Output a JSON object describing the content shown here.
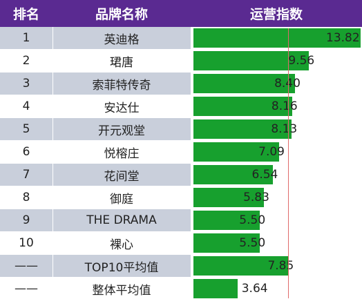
{
  "chart_data": {
    "type": "table",
    "columns": [
      "排名",
      "品牌名称",
      "运营指数"
    ],
    "rows": [
      {
        "rank": "1",
        "name": "英迪格",
        "value": 13.82,
        "label": "13.82"
      },
      {
        "rank": "2",
        "name": "珺唐",
        "value": 9.56,
        "label": "9.56"
      },
      {
        "rank": "3",
        "name": "索菲特传奇",
        "value": 8.4,
        "label": "8.40"
      },
      {
        "rank": "4",
        "name": "安达仕",
        "value": 8.16,
        "label": "8.16"
      },
      {
        "rank": "5",
        "name": "开元观堂",
        "value": 8.13,
        "label": "8.13"
      },
      {
        "rank": "6",
        "name": "悦榕庄",
        "value": 7.09,
        "label": "7.09"
      },
      {
        "rank": "7",
        "name": "花间堂",
        "value": 6.54,
        "label": "6.54"
      },
      {
        "rank": "8",
        "name": "御庭",
        "value": 5.83,
        "label": "5.83"
      },
      {
        "rank": "9",
        "name": "THE DRAMA",
        "value": 5.5,
        "label": "5.50"
      },
      {
        "rank": "10",
        "name": "裸心",
        "value": 5.5,
        "label": "5.50"
      },
      {
        "rank": "——",
        "name": "TOP10平均值",
        "value": 7.85,
        "label": "7.85"
      },
      {
        "rank": "——",
        "name": "整体平均值",
        "value": 3.64,
        "label": "3.64"
      }
    ],
    "reference_line_value": 7.85,
    "bar_scale_max": 13.82,
    "colors": {
      "header": "#5a2a91",
      "bar": "#17a02e",
      "stripe": "#c9cfdb",
      "reference_line": "#e06a6a"
    }
  }
}
